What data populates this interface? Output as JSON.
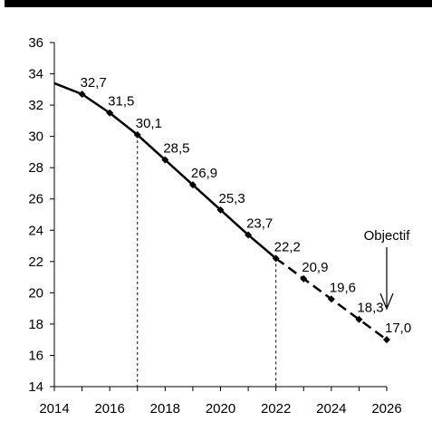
{
  "chart_data": {
    "type": "line",
    "title": "",
    "xlabel": "",
    "ylabel": "",
    "xlim": [
      2014,
      2026
    ],
    "ylim": [
      14,
      36
    ],
    "x_ticks": [
      "2014",
      "2016",
      "2018",
      "2020",
      "2022",
      "2024",
      "2026"
    ],
    "y_ticks": [
      "14",
      "16",
      "18",
      "20",
      "22",
      "24",
      "26",
      "28",
      "30",
      "32",
      "34",
      "36"
    ],
    "series": [
      {
        "style": "solid",
        "marker": "diamond",
        "lead_in": [
          2014,
          33.4
        ],
        "x": [
          2015,
          2016,
          2017,
          2018,
          2019,
          2020,
          2021,
          2022
        ],
        "values": [
          32.7,
          31.5,
          30.1,
          28.5,
          26.9,
          25.3,
          23.7,
          22.2
        ],
        "labels": [
          "32,7",
          "31,5",
          "30,1",
          "28,5",
          "26,9",
          "25,3",
          "23,7",
          "22,2"
        ]
      },
      {
        "style": "dashed",
        "marker": "diamond",
        "x": [
          2023,
          2024,
          2025,
          2026
        ],
        "values": [
          20.9,
          19.6,
          18.3,
          17.0
        ],
        "labels": [
          "20,9",
          "19,6",
          "18,3",
          "17,0"
        ]
      }
    ],
    "reference_lines": [
      {
        "x": 2017,
        "value": 30.1,
        "style": "dashed"
      },
      {
        "x": 2022,
        "value": 22.2,
        "style": "dashed"
      }
    ],
    "annotation": {
      "text": "Objectif",
      "x": 2026,
      "arrow": "down"
    },
    "grid": false,
    "colors": {
      "line": "#000000",
      "axis": "#000000",
      "background": "#ffffff"
    }
  }
}
